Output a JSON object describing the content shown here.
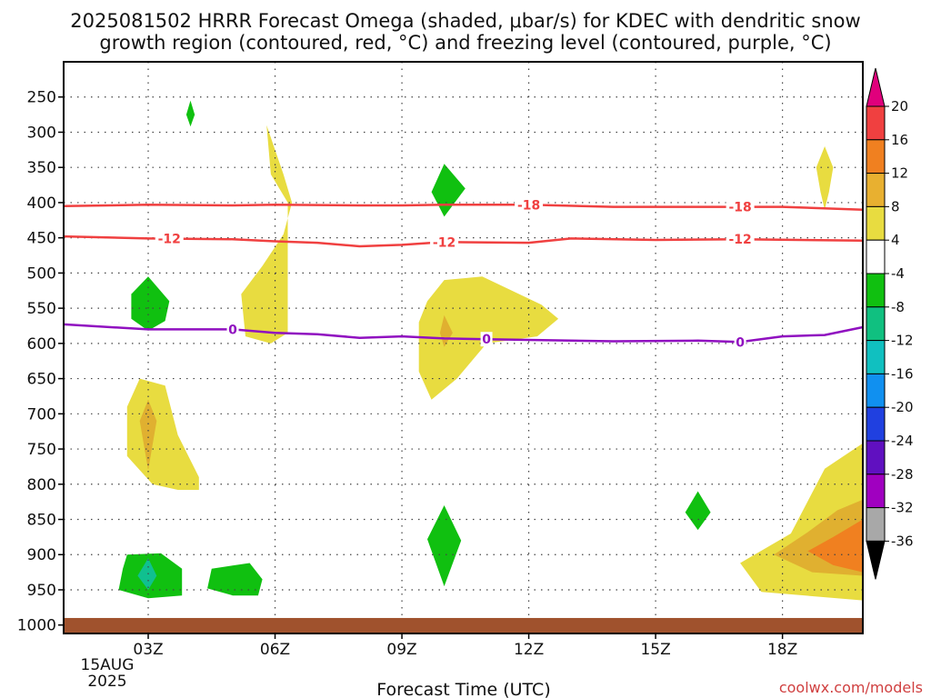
{
  "chart_data": {
    "type": "heatmap",
    "title_line1": "2025081502 HRRR Forecast Omega (shaded, μbar/s) for KDEC with dendritic snow",
    "title_line2": "growth region (contoured, red, °C) and freezing level (contoured, purple, °C)",
    "xlabel": "Forecast Time (UTC)",
    "credit": "coolwx.com/models",
    "x_ticks": [
      "03Z",
      "06Z",
      "09Z",
      "12Z",
      "15Z",
      "18Z"
    ],
    "x_tick_hours": [
      3,
      6,
      9,
      12,
      15,
      18
    ],
    "x_date_label": [
      "15AUG",
      "2025"
    ],
    "x_range_hours": [
      1.0,
      19.9
    ],
    "y_ticks": [
      250,
      300,
      350,
      400,
      450,
      500,
      550,
      600,
      650,
      700,
      750,
      800,
      850,
      900,
      950,
      1000
    ],
    "y_range_mb": [
      200,
      1012
    ],
    "ground_mb": 990,
    "colorbar": {
      "labels": [
        "20",
        "16",
        "12",
        "8",
        "4",
        "-4",
        "-8",
        "-12",
        "-16",
        "-20",
        "-24",
        "-28",
        "-32",
        "-36"
      ],
      "colors": [
        "#e0007c",
        "#f04040",
        "#f08020",
        "#e8b030",
        "#e8dc40",
        "#ffffff",
        "#10c010",
        "#10c080",
        "#10c0c0",
        "#1090f0",
        "#2040e0",
        "#6010c0",
        "#a000c0",
        "#a8a8a8",
        "#000000"
      ]
    },
    "colors": {
      "weak_rise": "#e8dc40",
      "moderate_rise": "#e0b030",
      "strong_rise": "#f08020",
      "weak_sink": "#10c010",
      "moderate_sink": "#10c090",
      "dgz_contour": "#f04040",
      "freezing_contour": "#9010c0",
      "ground": "#a0522d",
      "grid": "#444444"
    },
    "contours": [
      {
        "label": "-18",
        "color": "dgz",
        "hours": [
          1,
          3,
          5,
          6,
          8,
          9,
          10,
          12,
          14,
          16,
          18,
          19.9
        ],
        "mb": [
          405,
          403,
          404,
          403,
          404,
          404,
          403,
          403,
          406,
          406,
          406,
          410
        ],
        "label_hours": [
          12,
          17
        ]
      },
      {
        "label": "-12",
        "color": "dgz",
        "hours": [
          1,
          3,
          5,
          6,
          7,
          8,
          9,
          10,
          12,
          13,
          15,
          17,
          19.9
        ],
        "mb": [
          448,
          451,
          452,
          455,
          457,
          462,
          460,
          456,
          457,
          451,
          453,
          452,
          454
        ],
        "label_hours": [
          3.5,
          10,
          17
        ]
      },
      {
        "label": "0",
        "color": "freezing",
        "hours": [
          1,
          3,
          4,
          5,
          6,
          7,
          8,
          9,
          10,
          11,
          12,
          14,
          16,
          17,
          18,
          19,
          19.9
        ],
        "mb": [
          573,
          580,
          580,
          580,
          585,
          587,
          592,
          590,
          593,
          594,
          595,
          597,
          596,
          598,
          590,
          588,
          577
        ],
        "label_hours": [
          5,
          11,
          17
        ]
      }
    ],
    "regions": [
      {
        "level": "weak_rise",
        "points": [
          [
            5.8,
            290
          ],
          [
            6.2,
            360
          ],
          [
            6.4,
            400
          ],
          [
            6.2,
            445
          ],
          [
            5.7,
            490
          ],
          [
            5.2,
            530
          ],
          [
            5.3,
            590
          ],
          [
            5.9,
            600
          ],
          [
            6.3,
            585
          ],
          [
            6.3,
            500
          ],
          [
            6.3,
            400
          ],
          [
            5.9,
            360
          ]
        ]
      },
      {
        "level": "weak_rise",
        "points": [
          [
            10.0,
            510
          ],
          [
            10.9,
            505
          ],
          [
            12.3,
            545
          ],
          [
            12.7,
            565
          ],
          [
            12.2,
            590
          ],
          [
            11.0,
            600
          ],
          [
            10.3,
            650
          ],
          [
            9.7,
            680
          ],
          [
            9.4,
            640
          ],
          [
            9.4,
            570
          ],
          [
            9.6,
            540
          ]
        ]
      },
      {
        "level": "moderate_rise",
        "points": [
          [
            10.0,
            560
          ],
          [
            10.2,
            585
          ],
          [
            10.0,
            605
          ],
          [
            9.9,
            585
          ]
        ]
      },
      {
        "level": "weak_rise",
        "points": [
          [
            2.8,
            650
          ],
          [
            3.4,
            660
          ],
          [
            3.7,
            730
          ],
          [
            4.2,
            790
          ],
          [
            4.2,
            808
          ],
          [
            3.7,
            808
          ],
          [
            3.1,
            800
          ],
          [
            2.5,
            760
          ],
          [
            2.5,
            690
          ]
        ]
      },
      {
        "level": "moderate_rise",
        "points": [
          [
            3.0,
            680
          ],
          [
            3.2,
            710
          ],
          [
            3.0,
            780
          ],
          [
            2.8,
            710
          ]
        ]
      },
      {
        "level": "weak_rise",
        "points": [
          [
            17.0,
            912
          ],
          [
            18.2,
            870
          ],
          [
            19.0,
            778
          ],
          [
            19.9,
            742
          ],
          [
            19.9,
            965
          ],
          [
            17.5,
            953
          ]
        ]
      },
      {
        "level": "moderate_rise",
        "points": [
          [
            17.8,
            900
          ],
          [
            18.6,
            868
          ],
          [
            19.3,
            837
          ],
          [
            19.9,
            822
          ],
          [
            19.9,
            930
          ],
          [
            18.7,
            925
          ]
        ]
      },
      {
        "level": "strong_rise",
        "points": [
          [
            18.6,
            895
          ],
          [
            19.2,
            875
          ],
          [
            19.9,
            850
          ],
          [
            19.9,
            925
          ],
          [
            19.2,
            915
          ]
        ]
      },
      {
        "level": "weak_rise",
        "points": [
          [
            19.0,
            320
          ],
          [
            19.2,
            350
          ],
          [
            19.1,
            385
          ],
          [
            19.0,
            410
          ],
          [
            18.9,
            385
          ],
          [
            18.8,
            350
          ]
        ]
      },
      {
        "level": "weak_sink",
        "points": [
          [
            4.0,
            255
          ],
          [
            4.1,
            275
          ],
          [
            4.0,
            292
          ],
          [
            3.9,
            275
          ]
        ]
      },
      {
        "level": "weak_sink",
        "points": [
          [
            10.0,
            345
          ],
          [
            10.5,
            380
          ],
          [
            10.0,
            420
          ],
          [
            9.7,
            385
          ]
        ]
      },
      {
        "level": "weak_sink",
        "points": [
          [
            3.0,
            505
          ],
          [
            3.5,
            540
          ],
          [
            3.4,
            568
          ],
          [
            3.0,
            582
          ],
          [
            2.6,
            565
          ],
          [
            2.6,
            530
          ]
        ]
      },
      {
        "level": "weak_sink",
        "points": [
          [
            10.0,
            830
          ],
          [
            10.4,
            880
          ],
          [
            10.0,
            945
          ],
          [
            9.6,
            878
          ]
        ]
      },
      {
        "level": "weak_sink",
        "points": [
          [
            16.0,
            810
          ],
          [
            16.3,
            840
          ],
          [
            16.0,
            865
          ],
          [
            15.7,
            840
          ]
        ]
      },
      {
        "level": "weak_sink",
        "points": [
          [
            2.5,
            900
          ],
          [
            3.3,
            898
          ],
          [
            3.8,
            920
          ],
          [
            3.8,
            958
          ],
          [
            3.0,
            962
          ],
          [
            2.3,
            950
          ],
          [
            2.4,
            920
          ]
        ]
      },
      {
        "level": "moderate_sink",
        "points": [
          [
            3.0,
            905
          ],
          [
            3.2,
            930
          ],
          [
            3.0,
            950
          ],
          [
            2.75,
            930
          ]
        ]
      },
      {
        "level": "weak_sink",
        "points": [
          [
            4.5,
            920
          ],
          [
            5.4,
            912
          ],
          [
            5.7,
            935
          ],
          [
            5.6,
            958
          ],
          [
            5.0,
            958
          ],
          [
            4.4,
            948
          ]
        ]
      }
    ]
  }
}
